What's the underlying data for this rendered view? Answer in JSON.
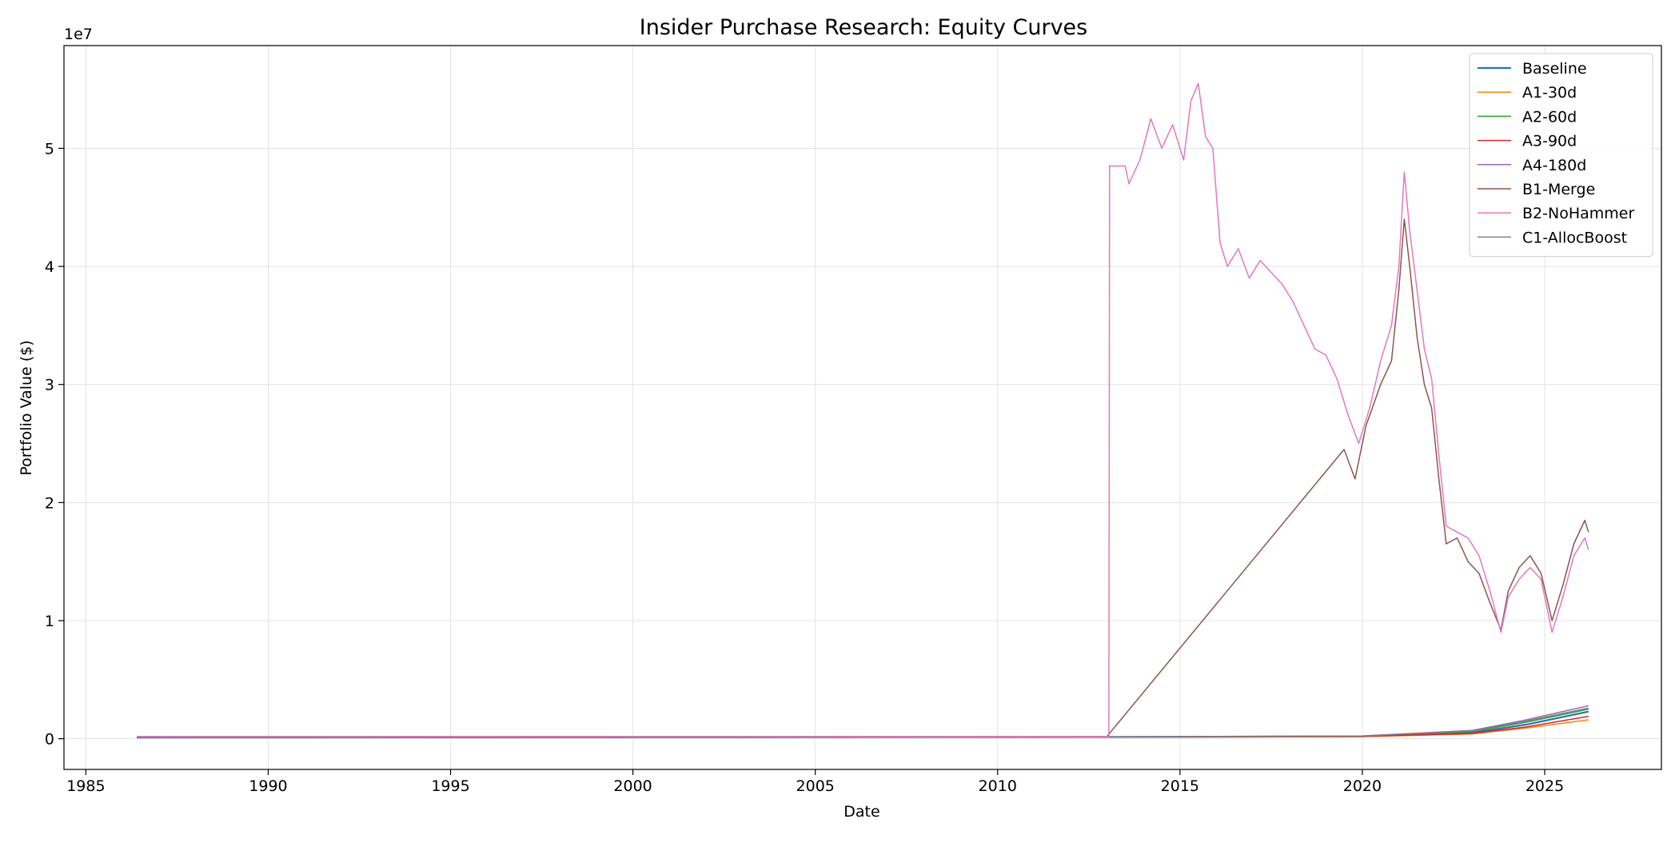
{
  "chart_data": {
    "type": "line",
    "title": "Insider Purchase Research: Equity Curves",
    "xlabel": "Date",
    "ylabel": "Portfolio Value ($)",
    "y_offset_label": "1e7",
    "xlim": [
      1984.4,
      2028.2
    ],
    "ylim": [
      -2.6,
      58.7
    ],
    "y_unit": "x 1e7 dollars (values listed in millions of dollars)",
    "x_ticks": [
      1985,
      1990,
      1995,
      2000,
      2005,
      2010,
      2015,
      2020,
      2025
    ],
    "x_tick_labels": [
      "1985",
      "1990",
      "1995",
      "2000",
      "2005",
      "2010",
      "2015",
      "2020",
      "2025"
    ],
    "y_ticks": [
      0,
      10,
      20,
      30,
      40,
      50
    ],
    "y_tick_labels": [
      "0",
      "1",
      "2",
      "3",
      "4",
      "5"
    ],
    "grid": true,
    "legend_position": "top-right",
    "series": [
      {
        "name": "Baseline",
        "color": "#1f77b4",
        "width": 2.2,
        "x": [
          1986.4,
          2000,
          2013,
          2020,
          2023,
          2024.5,
          2026.2
        ],
        "y": [
          0.1,
          0.12,
          0.15,
          0.2,
          0.5,
          1.2,
          2.3
        ]
      },
      {
        "name": "A1-30d",
        "color": "#ff7f0e",
        "width": 1.5,
        "x": [
          1986.4,
          2000,
          2013,
          2020,
          2023,
          2024.5,
          2026.2
        ],
        "y": [
          0.1,
          0.12,
          0.14,
          0.18,
          0.4,
          0.9,
          1.6
        ]
      },
      {
        "name": "A2-60d",
        "color": "#2ca02c",
        "width": 1.5,
        "x": [
          1986.4,
          2000,
          2013,
          2020,
          2023,
          2024.5,
          2026.2
        ],
        "y": [
          0.1,
          0.12,
          0.15,
          0.22,
          0.6,
          1.4,
          2.5
        ]
      },
      {
        "name": "A3-90d",
        "color": "#d62728",
        "width": 1.5,
        "x": [
          1986.4,
          2000,
          2013,
          2020,
          2023,
          2024.5,
          2026.2
        ],
        "y": [
          0.1,
          0.12,
          0.14,
          0.2,
          0.45,
          1.0,
          1.9
        ]
      },
      {
        "name": "A4-180d",
        "color": "#9467bd",
        "width": 1.5,
        "x": [
          1986.4,
          2000,
          2013,
          2020,
          2023,
          2024.5,
          2026.2
        ],
        "y": [
          0.1,
          0.13,
          0.16,
          0.24,
          0.7,
          1.6,
          2.8
        ]
      },
      {
        "name": "B1-Merge",
        "color": "#8c564b",
        "width": 1.5,
        "x": [
          1986.4,
          2013.0,
          2019.5,
          2019.8,
          2020.1,
          2020.5,
          2020.8,
          2021.0,
          2021.15,
          2021.3,
          2021.5,
          2021.7,
          2021.9,
          2022.1,
          2022.3,
          2022.6,
          2022.9,
          2023.2,
          2023.5,
          2023.8,
          2024.0,
          2024.3,
          2024.6,
          2024.9,
          2025.2,
          2025.5,
          2025.8,
          2026.1,
          2026.2
        ],
        "y": [
          0.2,
          0.2,
          24.5,
          22.0,
          26.5,
          30.0,
          32.0,
          38.0,
          44.0,
          40.0,
          34.0,
          30.0,
          28.0,
          22.0,
          16.5,
          17.0,
          15.0,
          14.0,
          11.5,
          9.2,
          12.5,
          14.5,
          15.5,
          14.0,
          10.0,
          13.0,
          16.5,
          18.5,
          17.5
        ]
      },
      {
        "name": "B2-NoHammer",
        "color": "#e377c2",
        "width": 1.5,
        "x": [
          1986.4,
          2013.05,
          2013.07,
          2013.5,
          2013.6,
          2013.9,
          2014.2,
          2014.5,
          2014.8,
          2015.1,
          2015.3,
          2015.5,
          2015.7,
          2015.9,
          2016.1,
          2016.3,
          2016.6,
          2016.9,
          2017.2,
          2017.5,
          2017.8,
          2018.1,
          2018.4,
          2018.7,
          2019.0,
          2019.3,
          2019.6,
          2019.9,
          2020.2,
          2020.5,
          2020.8,
          2021.0,
          2021.15,
          2021.3,
          2021.5,
          2021.7,
          2021.9,
          2022.1,
          2022.3,
          2022.6,
          2022.9,
          2023.2,
          2023.5,
          2023.8,
          2024.0,
          2024.3,
          2024.6,
          2024.9,
          2025.2,
          2025.5,
          2025.8,
          2026.1,
          2026.2
        ],
        "y": [
          0.2,
          0.2,
          48.5,
          48.5,
          47.0,
          49.0,
          52.5,
          50.0,
          52.0,
          49.0,
          54.0,
          55.5,
          51.0,
          50.0,
          42.0,
          40.0,
          41.5,
          39.0,
          40.5,
          39.5,
          38.5,
          37.0,
          35.0,
          33.0,
          32.5,
          30.5,
          27.5,
          25.0,
          28.0,
          32.0,
          35.0,
          40.0,
          48.0,
          43.0,
          38.0,
          33.0,
          30.5,
          24.0,
          18.0,
          17.5,
          17.0,
          15.5,
          12.5,
          9.0,
          12.0,
          13.5,
          14.5,
          13.5,
          9.0,
          12.0,
          15.5,
          17.0,
          16.0
        ]
      },
      {
        "name": "C1-AllocBoost",
        "color": "#7f7f7f",
        "width": 1.5,
        "x": [
          1986.4,
          2000,
          2013,
          2020,
          2023,
          2024.5,
          2026.2
        ],
        "y": [
          0.1,
          0.12,
          0.15,
          0.23,
          0.65,
          1.5,
          2.6
        ]
      }
    ]
  }
}
